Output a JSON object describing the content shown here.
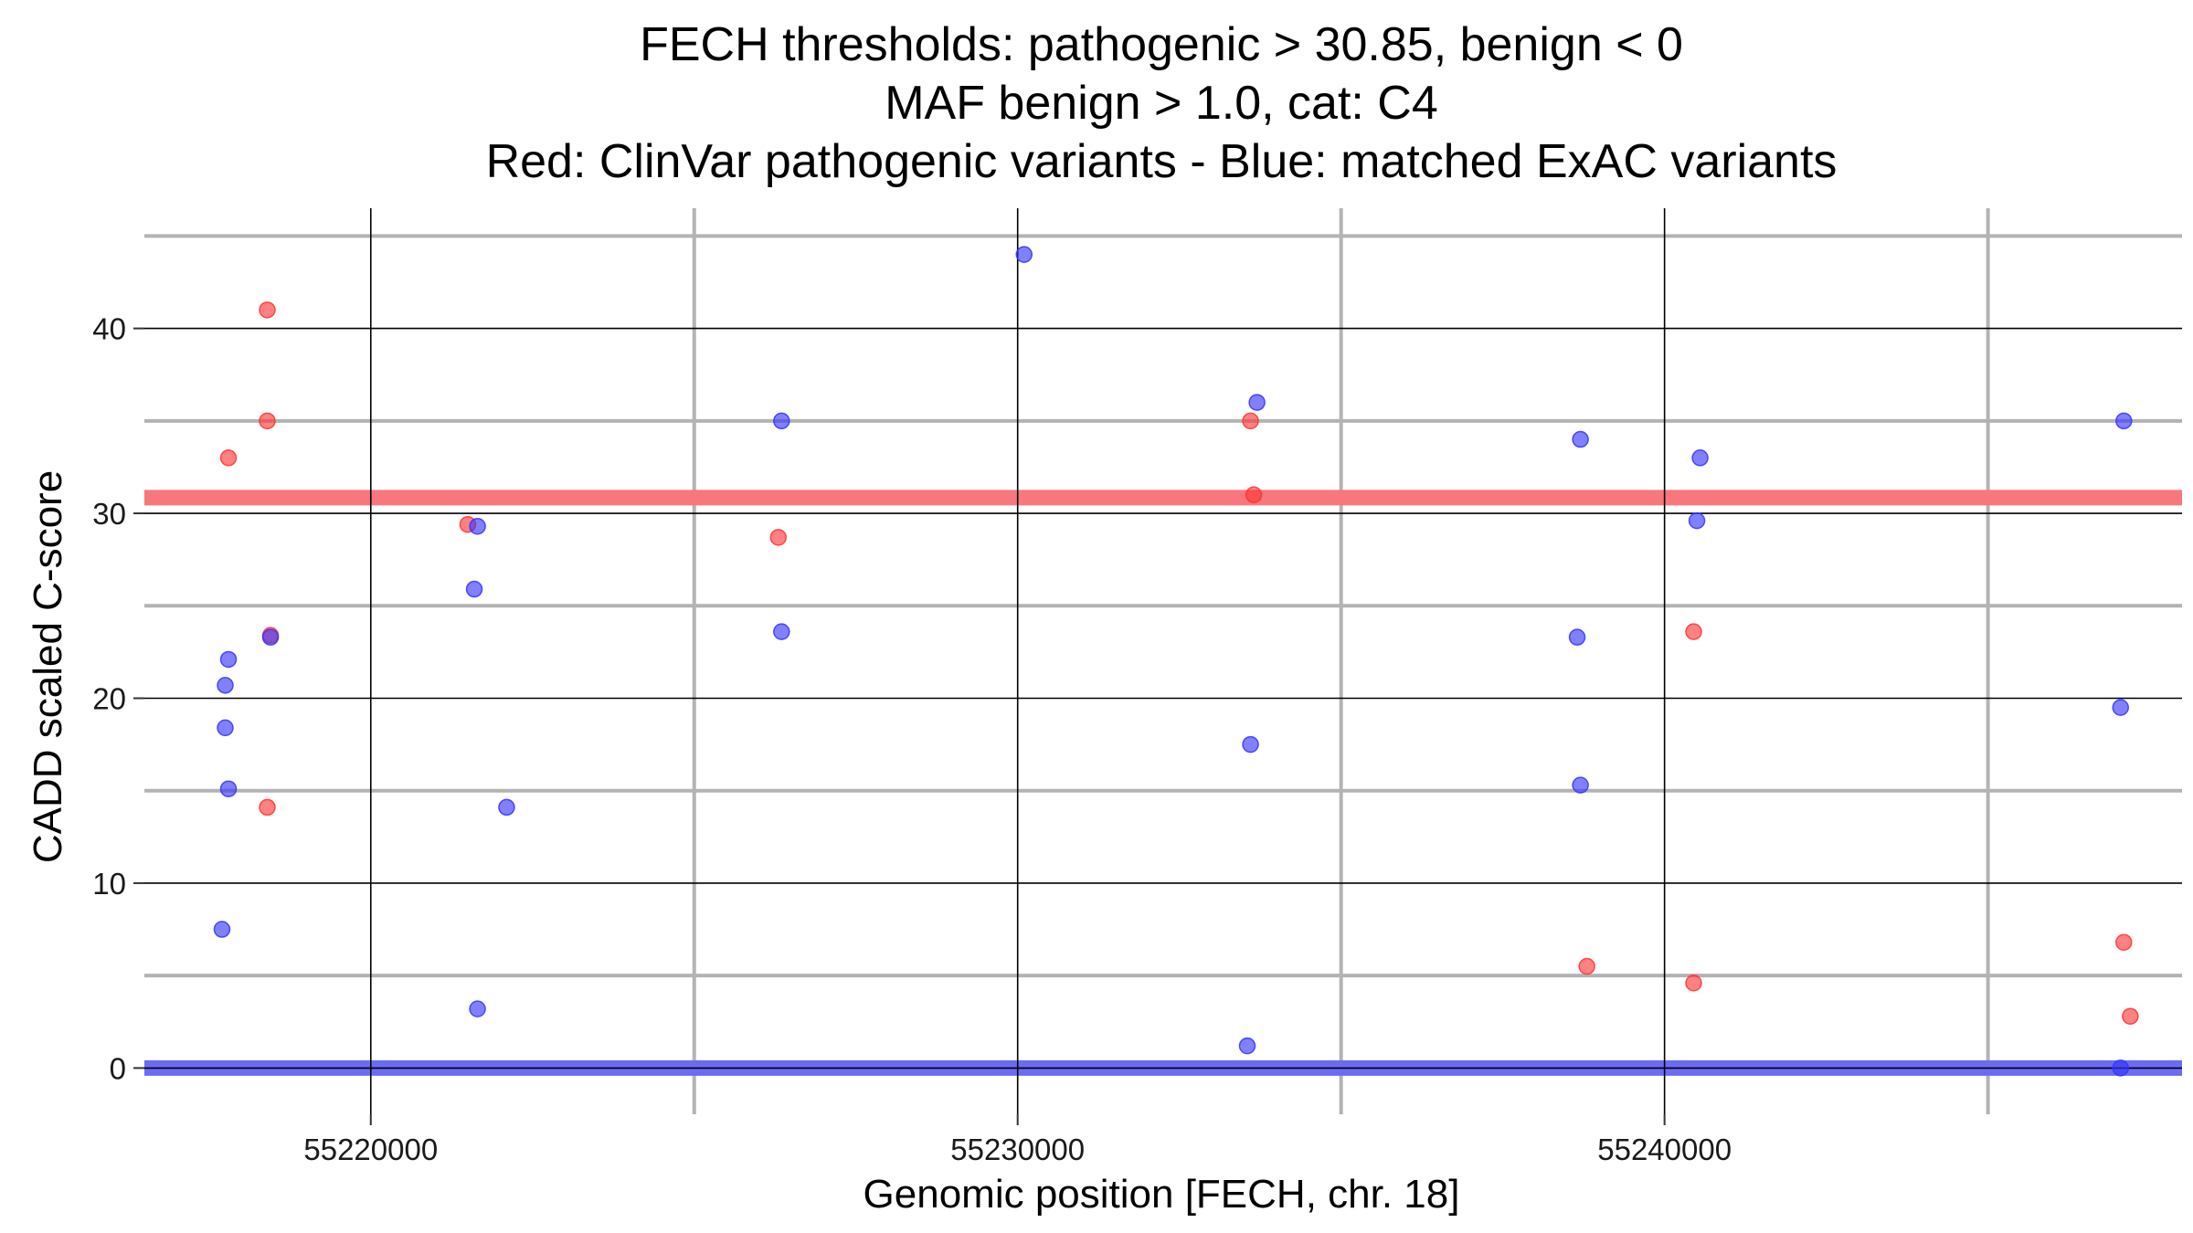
{
  "chart_data": {
    "type": "scatter",
    "title_lines": [
      "FECH thresholds: pathogenic > 30.85, benign < 0",
      "MAF benign > 1.0, cat: C4",
      "Red: ClinVar pathogenic variants - Blue: matched ExAC variants"
    ],
    "xlabel": "Genomic position [FECH, chr. 18]",
    "ylabel": "CADD scaled C-score",
    "xlim": [
      55216500,
      55248000
    ],
    "ylim": [
      -2.5,
      46.5
    ],
    "x_major_ticks": [
      55220000,
      55230000,
      55240000
    ],
    "x_minor_gridlines": [
      55225000,
      55235000,
      55245000
    ],
    "x_tick_labels": [
      "55220000",
      "55230000",
      "55240000"
    ],
    "y_major_ticks": [
      0,
      10,
      20,
      30,
      40
    ],
    "y_minor_gridlines": [
      5,
      15,
      25,
      35,
      45
    ],
    "y_tick_labels": [
      "0",
      "10",
      "20",
      "30",
      "40"
    ],
    "grid": true,
    "thresholds": [
      {
        "name": "pathogenic",
        "value": 30.85,
        "color": "#f8767d"
      },
      {
        "name": "benign",
        "value": 0,
        "color": "#6b6bf5"
      }
    ],
    "series": [
      {
        "name": "ClinVar pathogenic variants",
        "color": "#ff3333",
        "points": [
          {
            "x": 55218400,
            "y": 41
          },
          {
            "x": 55218400,
            "y": 35
          },
          {
            "x": 55217800,
            "y": 33
          },
          {
            "x": 55218450,
            "y": 23.4
          },
          {
            "x": 55218400,
            "y": 14.1
          },
          {
            "x": 55221500,
            "y": 29.4
          },
          {
            "x": 55226300,
            "y": 28.7
          },
          {
            "x": 55233600,
            "y": 35
          },
          {
            "x": 55233650,
            "y": 31
          },
          {
            "x": 55240450,
            "y": 23.6
          },
          {
            "x": 55238800,
            "y": 5.5
          },
          {
            "x": 55240450,
            "y": 4.6
          },
          {
            "x": 55247100,
            "y": 6.8
          },
          {
            "x": 55247200,
            "y": 2.8
          }
        ]
      },
      {
        "name": "matched ExAC variants",
        "color": "#3333ff",
        "points": [
          {
            "x": 55230100,
            "y": 44
          },
          {
            "x": 55233700,
            "y": 36
          },
          {
            "x": 55226350,
            "y": 35
          },
          {
            "x": 55238700,
            "y": 34
          },
          {
            "x": 55240550,
            "y": 33
          },
          {
            "x": 55247100,
            "y": 35
          },
          {
            "x": 55221650,
            "y": 29.3
          },
          {
            "x": 55240500,
            "y": 29.6
          },
          {
            "x": 55221600,
            "y": 25.9
          },
          {
            "x": 55217800,
            "y": 22.1
          },
          {
            "x": 55218450,
            "y": 23.3
          },
          {
            "x": 55226350,
            "y": 23.6
          },
          {
            "x": 55238650,
            "y": 23.3
          },
          {
            "x": 55217750,
            "y": 20.7
          },
          {
            "x": 55217750,
            "y": 18.4
          },
          {
            "x": 55247050,
            "y": 19.5
          },
          {
            "x": 55233600,
            "y": 17.5
          },
          {
            "x": 55217800,
            "y": 15.1
          },
          {
            "x": 55238700,
            "y": 15.3
          },
          {
            "x": 55222100,
            "y": 14.1
          },
          {
            "x": 55217700,
            "y": 7.5
          },
          {
            "x": 55221650,
            "y": 3.2
          },
          {
            "x": 55233550,
            "y": 1.2
          },
          {
            "x": 55247050,
            "y": 0
          }
        ]
      }
    ]
  }
}
